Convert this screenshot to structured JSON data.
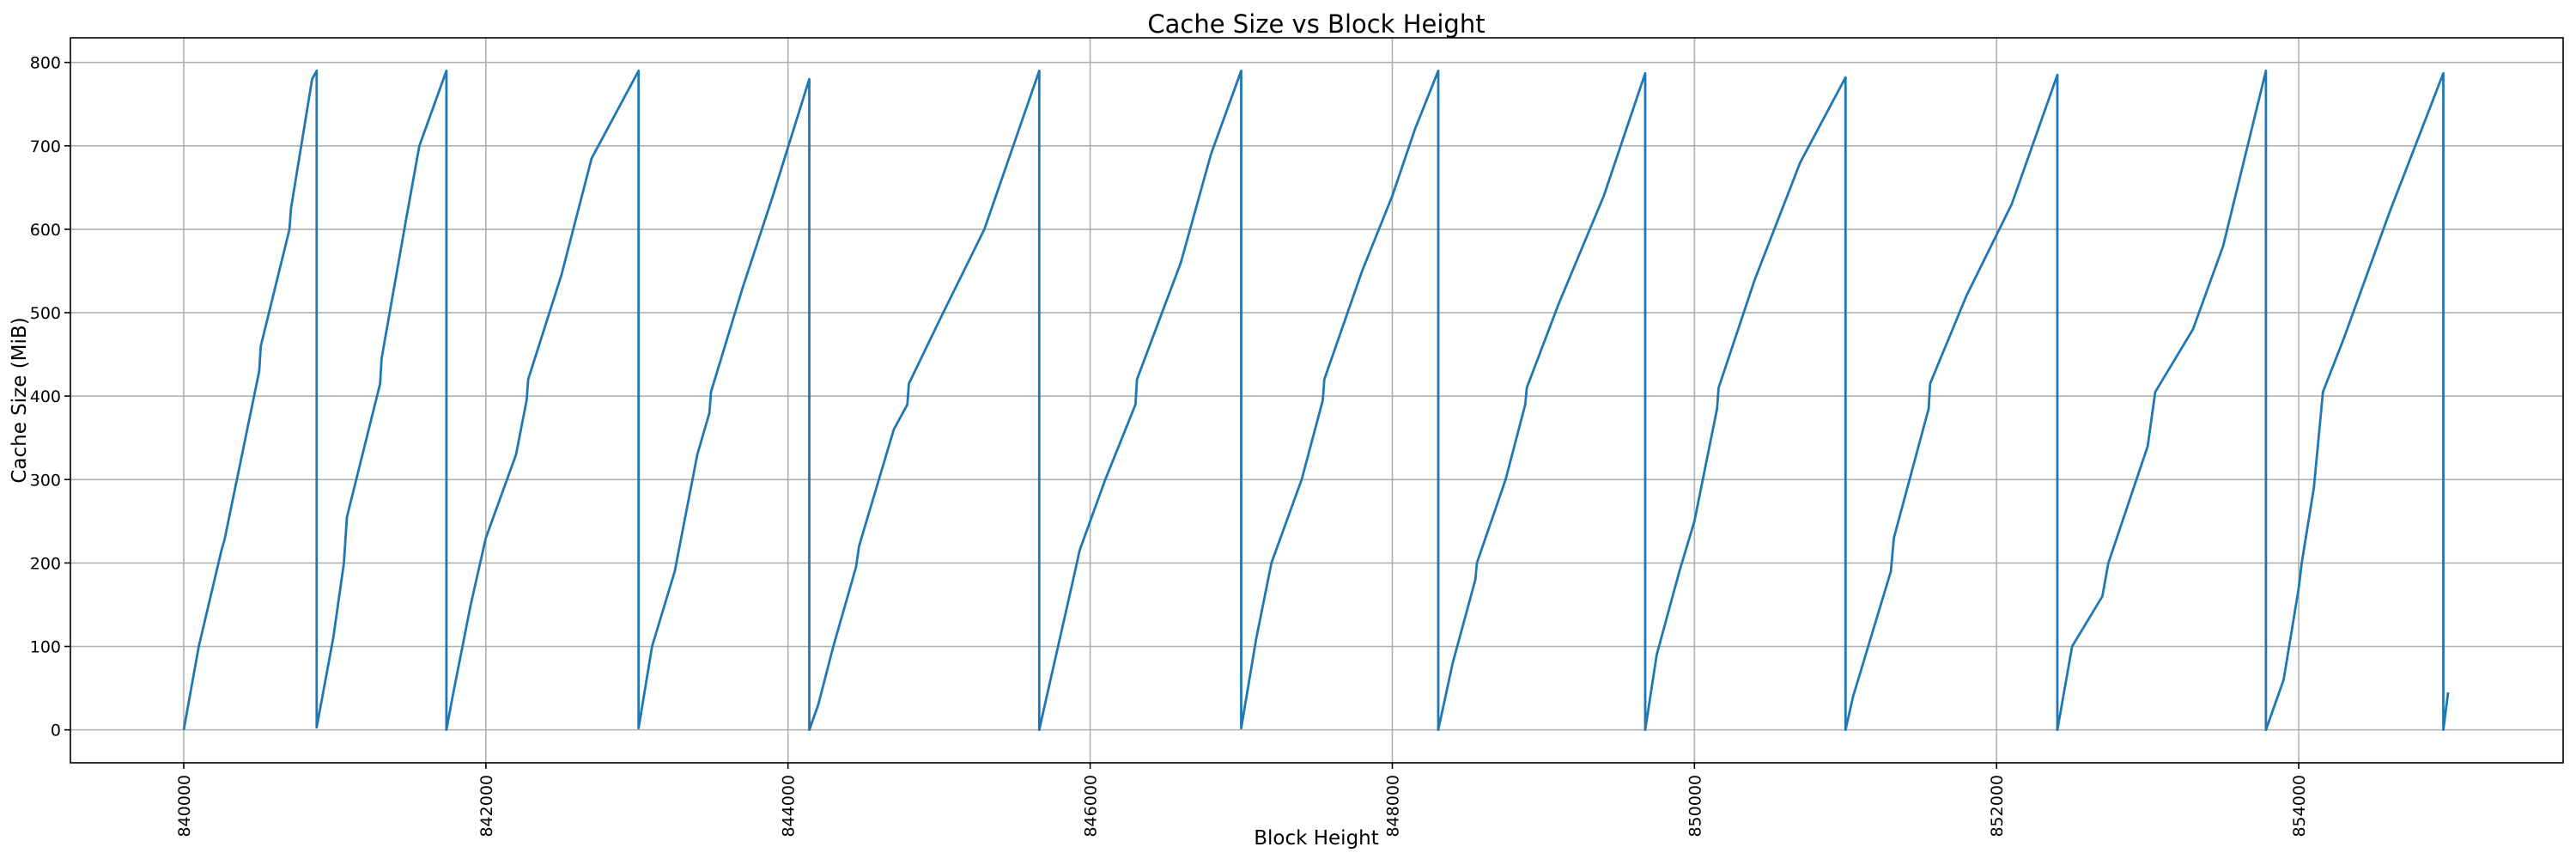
{
  "chart_data": {
    "type": "line",
    "title": "Cache Size vs Block Height",
    "xlabel": "Block Height",
    "ylabel": "Cache Size (MiB)",
    "xlim": [
      839250,
      855750
    ],
    "ylim": [
      -39.5,
      829.5
    ],
    "xticks": [
      840000,
      842000,
      844000,
      846000,
      848000,
      850000,
      852000,
      854000
    ],
    "xtick_labels": [
      "840000",
      "842000",
      "844000",
      "846000",
      "848000",
      "850000",
      "852000",
      "854000"
    ],
    "xtick_rotation": 90,
    "yticks": [
      0,
      100,
      200,
      300,
      400,
      500,
      600,
      700,
      800
    ],
    "ytick_labels": [
      "0",
      "100",
      "200",
      "300",
      "400",
      "500",
      "600",
      "700",
      "800"
    ],
    "grid": true,
    "legend": false,
    "color": "#1f77b4",
    "series": [
      {
        "points": [
          [
            840000,
            0
          ],
          [
            840100,
            100
          ],
          [
            840250,
            215
          ],
          [
            840270,
            228
          ],
          [
            840500,
            430
          ],
          [
            840510,
            460
          ],
          [
            840700,
            600
          ],
          [
            840710,
            625
          ],
          [
            840850,
            780
          ],
          [
            840880,
            790
          ],
          [
            840880,
            3
          ],
          [
            840990,
            110
          ],
          [
            841060,
            200
          ],
          [
            841080,
            255
          ],
          [
            841300,
            415
          ],
          [
            841310,
            445
          ],
          [
            841470,
            610
          ],
          [
            841560,
            700
          ],
          [
            841739,
            790
          ],
          [
            841739,
            0
          ],
          [
            841780,
            40
          ],
          [
            841900,
            150
          ],
          [
            842000,
            230
          ],
          [
            842200,
            330
          ],
          [
            842270,
            395
          ],
          [
            842280,
            420
          ],
          [
            842500,
            545
          ],
          [
            842700,
            685
          ],
          [
            843011,
            790
          ],
          [
            843011,
            2
          ],
          [
            843100,
            100
          ],
          [
            843250,
            190
          ],
          [
            843400,
            330
          ],
          [
            843480,
            380
          ],
          [
            843490,
            405
          ],
          [
            843700,
            530
          ],
          [
            843900,
            640
          ],
          [
            844141,
            780
          ],
          [
            844141,
            0
          ],
          [
            844200,
            30
          ],
          [
            844300,
            100
          ],
          [
            844450,
            195
          ],
          [
            844470,
            220
          ],
          [
            844700,
            360
          ],
          [
            844790,
            390
          ],
          [
            844800,
            415
          ],
          [
            845000,
            490
          ],
          [
            845300,
            600
          ],
          [
            845663,
            790
          ],
          [
            845663,
            0
          ],
          [
            845750,
            70
          ],
          [
            845900,
            190
          ],
          [
            845930,
            215
          ],
          [
            846100,
            300
          ],
          [
            846300,
            390
          ],
          [
            846310,
            420
          ],
          [
            846600,
            560
          ],
          [
            846800,
            690
          ],
          [
            847000,
            790
          ],
          [
            847000,
            2
          ],
          [
            847100,
            110
          ],
          [
            847200,
            200
          ],
          [
            847400,
            300
          ],
          [
            847540,
            395
          ],
          [
            847550,
            420
          ],
          [
            847800,
            550
          ],
          [
            848000,
            640
          ],
          [
            848150,
            720
          ],
          [
            848304,
            790
          ],
          [
            848304,
            0
          ],
          [
            848400,
            80
          ],
          [
            848550,
            180
          ],
          [
            848560,
            200
          ],
          [
            848750,
            300
          ],
          [
            848880,
            390
          ],
          [
            848890,
            410
          ],
          [
            849100,
            510
          ],
          [
            849400,
            640
          ],
          [
            849674,
            787
          ],
          [
            849674,
            0
          ],
          [
            849750,
            90
          ],
          [
            849900,
            190
          ],
          [
            850000,
            250
          ],
          [
            850150,
            385
          ],
          [
            850160,
            410
          ],
          [
            850400,
            540
          ],
          [
            850700,
            680
          ],
          [
            851000,
            782
          ],
          [
            851000,
            0
          ],
          [
            851050,
            40
          ],
          [
            851200,
            130
          ],
          [
            851300,
            190
          ],
          [
            851320,
            230
          ],
          [
            851550,
            385
          ],
          [
            851560,
            415
          ],
          [
            851800,
            520
          ],
          [
            852100,
            630
          ],
          [
            852402,
            785
          ],
          [
            852402,
            0
          ],
          [
            852500,
            100
          ],
          [
            852700,
            160
          ],
          [
            852740,
            200
          ],
          [
            853000,
            340
          ],
          [
            853050,
            405
          ],
          [
            853300,
            480
          ],
          [
            853500,
            580
          ],
          [
            853783,
            790
          ],
          [
            853783,
            0
          ],
          [
            853900,
            60
          ],
          [
            854000,
            170
          ],
          [
            854020,
            200
          ],
          [
            854100,
            290
          ],
          [
            854160,
            405
          ],
          [
            854300,
            470
          ],
          [
            854600,
            620
          ],
          [
            854957,
            787
          ],
          [
            854957,
            0
          ],
          [
            854989,
            45
          ]
        ]
      }
    ]
  }
}
